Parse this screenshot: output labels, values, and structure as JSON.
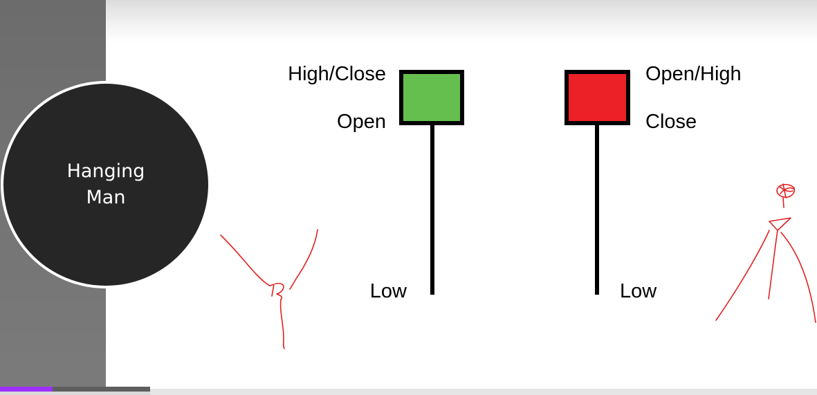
{
  "slide": {
    "title_line1": "Hanging",
    "title_line2": "Man"
  },
  "bullish_candle": {
    "label_top": "High/Close",
    "label_open": "Open",
    "label_low": "Low",
    "body_color": "#65bf4f"
  },
  "bearish_candle": {
    "label_top": "Open/High",
    "label_close": "Close",
    "label_low": "Low",
    "body_color": "#ec2027"
  },
  "annotation_color": "#e02020",
  "video_progress": {
    "fraction_played": 0.35,
    "played_color": "#9b30ff"
  }
}
